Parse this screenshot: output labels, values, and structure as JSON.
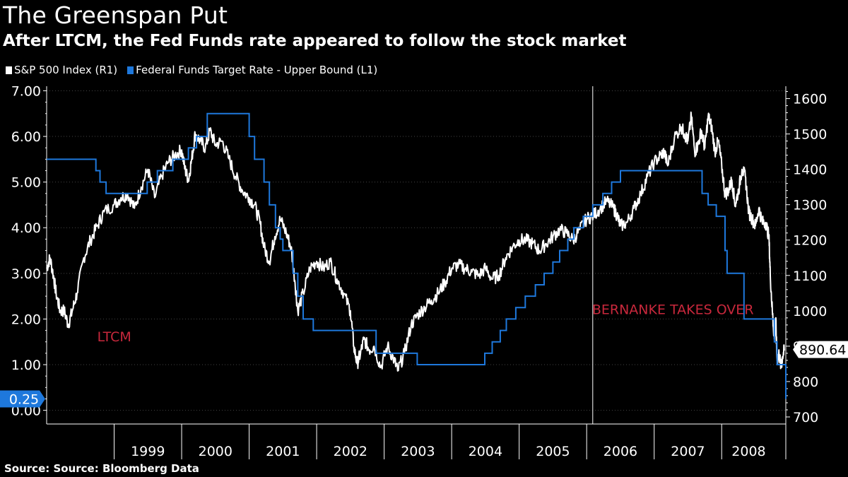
{
  "chart_data": {
    "type": "line",
    "title": "The Greenspan Put",
    "subtitle": "After LTCM, the Fed Funds rate appeared to follow the stock market",
    "source": "Source: Source: Bloomberg Data",
    "x_range": [
      1998.0,
      2008.95
    ],
    "year_labels": [
      "1999",
      "2000",
      "2001",
      "2002",
      "2003",
      "2004",
      "2005",
      "2006",
      "2007",
      "2008"
    ],
    "year_label_positions": [
      1999.5,
      2000.5,
      2001.5,
      2002.5,
      2003.5,
      2004.5,
      2005.5,
      2006.5,
      2007.5,
      2008.4
    ],
    "year_boundaries": [
      1999,
      2000,
      2001,
      2002,
      2003,
      2004,
      2005,
      2006,
      2007,
      2008,
      2008.95
    ],
    "left_axis": {
      "ylim": [
        -0.3,
        7.1
      ],
      "ticks": [
        "0.00",
        "1.00",
        "2.00",
        "3.00",
        "4.00",
        "5.00",
        "6.00",
        "7.00"
      ]
    },
    "right_axis": {
      "ylim": [
        680,
        1635
      ],
      "ticks": [
        "700",
        "800",
        "900",
        "1000",
        "1100",
        "1200",
        "1300",
        "1400",
        "1500",
        "1600"
      ]
    },
    "series": [
      {
        "name": "S&P 500 Index",
        "axis": "R1",
        "legend": "S&P 500 Index  (R1)",
        "color": "#ffffff",
        "last_value": "890.64",
        "x": [
          1998.0,
          1998.05,
          1998.1,
          1998.14,
          1998.2,
          1998.26,
          1998.32,
          1998.38,
          1998.45,
          1998.55,
          1998.65,
          1998.75,
          1998.85,
          1999.0,
          1999.1,
          1999.2,
          1999.3,
          1999.4,
          1999.5,
          1999.6,
          1999.7,
          1999.8,
          1999.9,
          2000.0,
          2000.05,
          2000.1,
          2000.15,
          2000.2,
          2000.28,
          2000.35,
          2000.42,
          2000.5,
          2000.6,
          2000.7,
          2000.8,
          2000.9,
          2001.0,
          2001.08,
          2001.16,
          2001.22,
          2001.3,
          2001.38,
          2001.46,
          2001.55,
          2001.62,
          2001.68,
          2001.72,
          2001.8,
          2001.9,
          2002.0,
          2002.1,
          2002.2,
          2002.3,
          2002.4,
          2002.5,
          2002.55,
          2002.6,
          2002.65,
          2002.7,
          2002.78,
          2002.85,
          2002.95,
          2003.05,
          2003.15,
          2003.2,
          2003.3,
          2003.4,
          2003.5,
          2003.6,
          2003.7,
          2003.8,
          2003.9,
          2004.0,
          2004.1,
          2004.2,
          2004.3,
          2004.4,
          2004.5,
          2004.6,
          2004.7,
          2004.8,
          2004.9,
          2005.0,
          2005.1,
          2005.2,
          2005.3,
          2005.4,
          2005.5,
          2005.6,
          2005.7,
          2005.8,
          2005.9,
          2006.0,
          2006.1,
          2006.2,
          2006.3,
          2006.4,
          2006.45,
          2006.5,
          2006.6,
          2006.7,
          2006.8,
          2006.9,
          2007.0,
          2007.1,
          2007.15,
          2007.2,
          2007.3,
          2007.4,
          2007.45,
          2007.5,
          2007.55,
          2007.6,
          2007.65,
          2007.7,
          2007.75,
          2007.8,
          2007.85,
          2007.9,
          2007.95,
          2008.0,
          2008.05,
          2008.1,
          2008.15,
          2008.2,
          2008.25,
          2008.3,
          2008.35,
          2008.4,
          2008.45,
          2008.5,
          2008.55,
          2008.6,
          2008.65,
          2008.7,
          2008.72,
          2008.75,
          2008.78,
          2008.8,
          2008.82,
          2008.85,
          2008.88,
          2008.9,
          2008.93
        ],
        "values": [
          1120,
          1150,
          1100,
          1050,
          1000,
          1000,
          960,
          1000,
          1050,
          1150,
          1200,
          1240,
          1280,
          1300,
          1320,
          1330,
          1290,
          1350,
          1400,
          1320,
          1380,
          1420,
          1440,
          1455,
          1400,
          1370,
          1430,
          1500,
          1480,
          1460,
          1510,
          1470,
          1480,
          1430,
          1380,
          1340,
          1320,
          1300,
          1250,
          1180,
          1140,
          1210,
          1260,
          1220,
          1180,
          1080,
          1000,
          1050,
          1120,
          1140,
          1120,
          1140,
          1090,
          1050,
          1000,
          900,
          850,
          880,
          920,
          890,
          900,
          840,
          900,
          860,
          830,
          880,
          960,
          990,
          1010,
          1030,
          1050,
          1080,
          1120,
          1130,
          1120,
          1110,
          1100,
          1120,
          1090,
          1100,
          1150,
          1180,
          1200,
          1200,
          1190,
          1170,
          1190,
          1210,
          1230,
          1220,
          1200,
          1230,
          1260,
          1270,
          1290,
          1310,
          1290,
          1270,
          1240,
          1250,
          1290,
          1330,
          1380,
          1420,
          1440,
          1450,
          1410,
          1490,
          1520,
          1500,
          1480,
          1550,
          1450,
          1470,
          1510,
          1460,
          1550,
          1520,
          1450,
          1480,
          1410,
          1330,
          1340,
          1370,
          1300,
          1340,
          1400,
          1380,
          1280,
          1260,
          1240,
          1290,
          1250,
          1250,
          1210,
          1100,
          1000,
          920,
          980,
          860,
          880,
          840,
          870,
          890.64
        ]
      },
      {
        "name": "Federal Funds Target Rate - Upper Bound",
        "axis": "L1",
        "legend": "Federal Funds Target Rate - Upper Bound  (L1)",
        "color": "#1e78dc",
        "last_value": "0.25",
        "x": [
          1998.0,
          1998.73,
          1998.79,
          1998.88,
          1999.49,
          1999.64,
          1999.87,
          2000.1,
          2000.22,
          2000.38,
          2001.0,
          2001.08,
          2001.22,
          2001.3,
          2001.39,
          2001.46,
          2001.5,
          2001.65,
          2001.72,
          2001.8,
          2001.85,
          2001.95,
          2002.88,
          2003.49,
          2004.49,
          2004.6,
          2004.72,
          2004.81,
          2004.95,
          2005.09,
          2005.24,
          2005.37,
          2005.5,
          2005.6,
          2005.72,
          2005.81,
          2005.95,
          2006.09,
          2006.24,
          2006.37,
          2006.5,
          2007.71,
          2007.8,
          2007.92,
          2008.05,
          2008.08,
          2008.33,
          2008.78,
          2008.82,
          2008.95
        ],
        "values": [
          5.5,
          5.25,
          5.0,
          4.75,
          5.0,
          5.25,
          5.5,
          5.75,
          6.0,
          6.5,
          6.0,
          5.5,
          5.0,
          4.5,
          4.0,
          3.75,
          3.5,
          3.0,
          2.5,
          2.0,
          2.0,
          1.75,
          1.25,
          1.0,
          1.25,
          1.5,
          1.75,
          2.0,
          2.25,
          2.5,
          2.75,
          3.0,
          3.25,
          3.5,
          3.75,
          4.0,
          4.25,
          4.5,
          4.75,
          5.0,
          5.25,
          4.75,
          4.5,
          4.25,
          3.5,
          3.0,
          2.0,
          1.5,
          1.0,
          0.25
        ]
      }
    ],
    "annotations": [
      {
        "text": "LTCM",
        "x": 1998.75,
        "right_value": 890
      },
      {
        "text": "BERNANKE TAKES OVER",
        "x": 2006.08,
        "right_value": 1005
      }
    ],
    "vertical_line": {
      "x": 2006.09,
      "color": "#ffffff"
    },
    "colors": {
      "background": "#000000",
      "spx": "#ffffff",
      "fed": "#1e78dc",
      "annotation": "#c8283c",
      "axis": "#ffffff"
    }
  }
}
